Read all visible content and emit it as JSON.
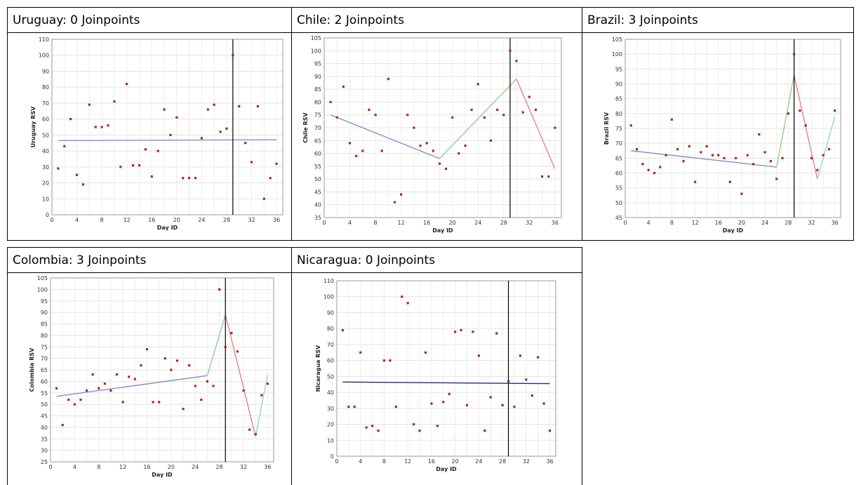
{
  "chart_data": [
    {
      "type": "scatter",
      "title": "Uruguay: 0 Joinpoints",
      "xlabel": "Day ID",
      "ylabel": "Uruguay RSV",
      "xlim": [
        0,
        37
      ],
      "ylim": [
        0,
        110
      ],
      "xticks": [
        0,
        4,
        8,
        12,
        16,
        20,
        24,
        28,
        32,
        36
      ],
      "yticks": [
        0,
        10,
        20,
        30,
        40,
        50,
        60,
        70,
        80,
        90,
        100,
        110
      ],
      "grid": true,
      "vline": 29,
      "points": [
        [
          1,
          29
        ],
        [
          2,
          43
        ],
        [
          3,
          60
        ],
        [
          4,
          25
        ],
        [
          5,
          19
        ],
        [
          6,
          69
        ],
        [
          7,
          55
        ],
        [
          8,
          55
        ],
        [
          9,
          56
        ],
        [
          10,
          71
        ],
        [
          11,
          30
        ],
        [
          12,
          82
        ],
        [
          13,
          31
        ],
        [
          14,
          31
        ],
        [
          15,
          41
        ],
        [
          16,
          24
        ],
        [
          17,
          40
        ],
        [
          18,
          66
        ],
        [
          19,
          50
        ],
        [
          20,
          61
        ],
        [
          21,
          23
        ],
        [
          22,
          23
        ],
        [
          23,
          23
        ],
        [
          24,
          48
        ],
        [
          25,
          66
        ],
        [
          26,
          69
        ],
        [
          27,
          52
        ],
        [
          28,
          54
        ],
        [
          29,
          100
        ],
        [
          30,
          68
        ],
        [
          31,
          45
        ],
        [
          32,
          33
        ],
        [
          33,
          68
        ],
        [
          34,
          10
        ],
        [
          35,
          23
        ],
        [
          36,
          32
        ]
      ],
      "segments": [
        {
          "x": [
            1,
            36
          ],
          "y": [
            46.5,
            47
          ],
          "color": "#8a8ad0"
        }
      ]
    },
    {
      "type": "scatter",
      "title": "Chile: 2 Joinpoints",
      "xlabel": "Day ID",
      "ylabel": "Chile RSV",
      "xlim": [
        0,
        37
      ],
      "ylim": [
        35,
        105
      ],
      "xticks": [
        0,
        4,
        8,
        12,
        16,
        20,
        24,
        28,
        32,
        36
      ],
      "yticks": [
        35,
        40,
        45,
        50,
        55,
        60,
        65,
        70,
        75,
        80,
        85,
        90,
        95,
        100,
        105
      ],
      "grid": true,
      "vline": 29,
      "points": [
        [
          1,
          80
        ],
        [
          2,
          74
        ],
        [
          3,
          86
        ],
        [
          4,
          64
        ],
        [
          5,
          59
        ],
        [
          6,
          61
        ],
        [
          7,
          77
        ],
        [
          8,
          75
        ],
        [
          9,
          61
        ],
        [
          10,
          89
        ],
        [
          11,
          41
        ],
        [
          12,
          44
        ],
        [
          13,
          75
        ],
        [
          14,
          70
        ],
        [
          15,
          63
        ],
        [
          16,
          64
        ],
        [
          17,
          61
        ],
        [
          18,
          56
        ],
        [
          19,
          54
        ],
        [
          20,
          74
        ],
        [
          21,
          60
        ],
        [
          22,
          63
        ],
        [
          23,
          77
        ],
        [
          24,
          87
        ],
        [
          25,
          74
        ],
        [
          26,
          65
        ],
        [
          27,
          77
        ],
        [
          28,
          75
        ],
        [
          29,
          100
        ],
        [
          30,
          96
        ],
        [
          31,
          76
        ],
        [
          32,
          82
        ],
        [
          33,
          77
        ],
        [
          34,
          51
        ],
        [
          35,
          51
        ],
        [
          36,
          70
        ]
      ],
      "segments": [
        {
          "x": [
            1,
            18
          ],
          "y": [
            75,
            58
          ],
          "color": "#8a8ad0"
        },
        {
          "x": [
            18,
            30
          ],
          "y": [
            58,
            89
          ],
          "color": "#8fcf8f"
        },
        {
          "x": [
            30,
            36
          ],
          "y": [
            89,
            54
          ],
          "color": "#f08080"
        }
      ]
    },
    {
      "type": "scatter",
      "title": "Brazil: 3 Joinpoints",
      "xlabel": "Day ID",
      "ylabel": "Brazil RSV",
      "xlim": [
        0,
        37
      ],
      "ylim": [
        45,
        105
      ],
      "xticks": [
        0,
        4,
        8,
        12,
        16,
        20,
        24,
        28,
        32,
        36
      ],
      "yticks": [
        45,
        50,
        55,
        60,
        65,
        70,
        75,
        80,
        85,
        90,
        95,
        100,
        105
      ],
      "grid": true,
      "vline": 29,
      "points": [
        [
          1,
          76
        ],
        [
          2,
          68
        ],
        [
          3,
          63
        ],
        [
          4,
          61
        ],
        [
          5,
          60
        ],
        [
          6,
          62
        ],
        [
          7,
          66
        ],
        [
          8,
          78
        ],
        [
          9,
          68
        ],
        [
          10,
          64
        ],
        [
          11,
          69
        ],
        [
          12,
          57
        ],
        [
          13,
          67
        ],
        [
          14,
          69
        ],
        [
          15,
          66
        ],
        [
          16,
          66
        ],
        [
          17,
          65
        ],
        [
          18,
          57
        ],
        [
          19,
          65
        ],
        [
          20,
          53
        ],
        [
          21,
          66
        ],
        [
          22,
          63
        ],
        [
          23,
          73
        ],
        [
          24,
          67
        ],
        [
          25,
          64
        ],
        [
          26,
          58
        ],
        [
          27,
          65
        ],
        [
          28,
          80
        ],
        [
          29,
          100
        ],
        [
          30,
          81
        ],
        [
          31,
          76
        ],
        [
          32,
          65
        ],
        [
          33,
          61
        ],
        [
          34,
          66
        ],
        [
          35,
          68
        ],
        [
          36,
          81
        ]
      ],
      "segments": [
        {
          "x": [
            1,
            26
          ],
          "y": [
            67.5,
            62
          ],
          "color": "#8a8ad0"
        },
        {
          "x": [
            26,
            29
          ],
          "y": [
            62,
            93
          ],
          "color": "#8fcf8f"
        },
        {
          "x": [
            29,
            33
          ],
          "y": [
            93,
            58
          ],
          "color": "#f08080"
        },
        {
          "x": [
            33,
            36
          ],
          "y": [
            58,
            79
          ],
          "color": "#8fd6d6"
        }
      ]
    },
    {
      "type": "scatter",
      "title": "Colombia: 3 Joinpoints",
      "xlabel": "Day ID",
      "ylabel": "Colombia RSV",
      "xlim": [
        0,
        37
      ],
      "ylim": [
        25,
        105
      ],
      "xticks": [
        0,
        4,
        8,
        12,
        16,
        20,
        24,
        28,
        32,
        36
      ],
      "yticks": [
        25,
        30,
        35,
        40,
        45,
        50,
        55,
        60,
        65,
        70,
        75,
        80,
        85,
        90,
        95,
        100,
        105
      ],
      "grid": true,
      "vline": 29,
      "points": [
        [
          1,
          57
        ],
        [
          2,
          41
        ],
        [
          3,
          52
        ],
        [
          4,
          50
        ],
        [
          5,
          52
        ],
        [
          6,
          56
        ],
        [
          7,
          63
        ],
        [
          8,
          57
        ],
        [
          9,
          59
        ],
        [
          10,
          56
        ],
        [
          11,
          63
        ],
        [
          12,
          51
        ],
        [
          13,
          62
        ],
        [
          14,
          61
        ],
        [
          15,
          67
        ],
        [
          16,
          74
        ],
        [
          17,
          51
        ],
        [
          18,
          51
        ],
        [
          19,
          70
        ],
        [
          20,
          65
        ],
        [
          21,
          69
        ],
        [
          22,
          48
        ],
        [
          23,
          67
        ],
        [
          24,
          58
        ],
        [
          25,
          52
        ],
        [
          26,
          60
        ],
        [
          27,
          58
        ],
        [
          28,
          100
        ],
        [
          29,
          75
        ],
        [
          30,
          81
        ],
        [
          31,
          73
        ],
        [
          32,
          56
        ],
        [
          33,
          39
        ],
        [
          34,
          37
        ],
        [
          35,
          54
        ],
        [
          36,
          59
        ]
      ],
      "segments": [
        {
          "x": [
            1,
            26
          ],
          "y": [
            53.5,
            62.5
          ],
          "color": "#8a8ad0"
        },
        {
          "x": [
            26,
            29
          ],
          "y": [
            62.5,
            89
          ],
          "color": "#8fcf8f"
        },
        {
          "x": [
            29,
            34
          ],
          "y": [
            89,
            36
          ],
          "color": "#f08080"
        },
        {
          "x": [
            34,
            36
          ],
          "y": [
            36,
            63
          ],
          "color": "#8fd6d6"
        }
      ]
    },
    {
      "type": "scatter",
      "title": "Nicaragua: 0 Joinpoints",
      "xlabel": "Day ID",
      "ylabel": "Nicaragua RSV",
      "xlim": [
        0,
        37
      ],
      "ylim": [
        0,
        110
      ],
      "xticks": [
        0,
        4,
        8,
        12,
        16,
        20,
        24,
        28,
        32,
        36
      ],
      "yticks": [
        0,
        10,
        20,
        30,
        40,
        50,
        60,
        70,
        80,
        90,
        100,
        110
      ],
      "grid": true,
      "vline": 29,
      "points": [
        [
          1,
          79
        ],
        [
          2,
          31
        ],
        [
          3,
          31
        ],
        [
          4,
          65
        ],
        [
          5,
          18
        ],
        [
          6,
          19
        ],
        [
          7,
          16
        ],
        [
          8,
          60
        ],
        [
          9,
          60
        ],
        [
          10,
          31
        ],
        [
          11,
          100
        ],
        [
          12,
          96
        ],
        [
          13,
          20
        ],
        [
          14,
          16
        ],
        [
          15,
          65
        ],
        [
          16,
          33
        ],
        [
          17,
          19
        ],
        [
          18,
          34
        ],
        [
          19,
          39
        ],
        [
          20,
          78
        ],
        [
          21,
          79
        ],
        [
          22,
          32
        ],
        [
          23,
          78
        ],
        [
          24,
          63
        ],
        [
          25,
          16
        ],
        [
          26,
          37
        ],
        [
          27,
          77
        ],
        [
          28,
          32
        ],
        [
          29,
          47
        ],
        [
          30,
          31
        ],
        [
          31,
          63
        ],
        [
          32,
          48
        ],
        [
          33,
          38
        ],
        [
          34,
          62
        ],
        [
          35,
          33
        ],
        [
          36,
          16
        ]
      ],
      "segments": [
        {
          "x": [
            1,
            36
          ],
          "y": [
            46.5,
            45.5
          ],
          "color": "#1f2f70"
        }
      ]
    }
  ]
}
